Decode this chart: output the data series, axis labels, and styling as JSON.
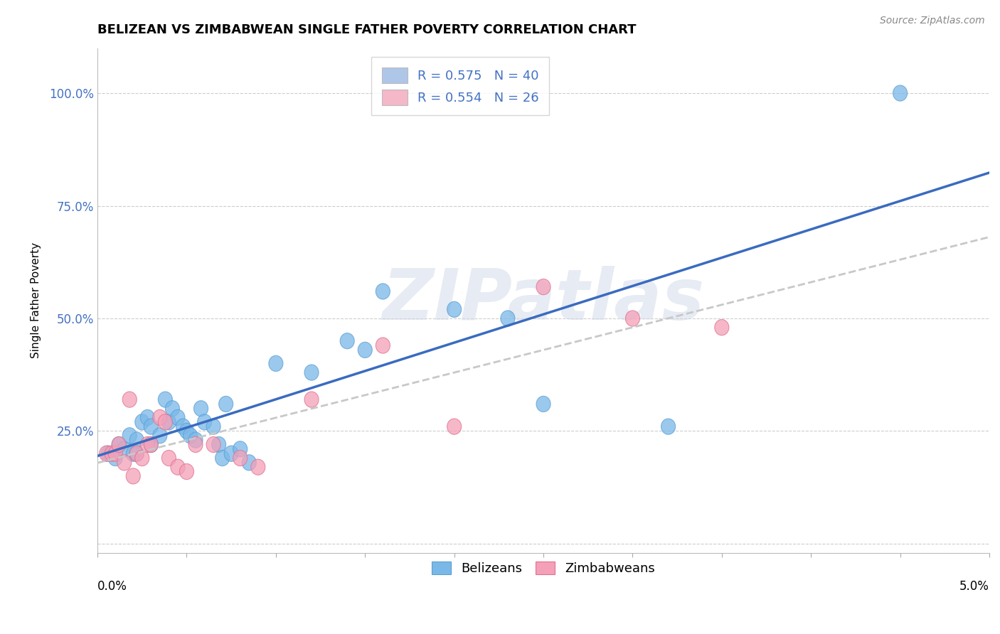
{
  "title": "BELIZEAN VS ZIMBABWEAN SINGLE FATHER POVERTY CORRELATION CHART",
  "source": "Source: ZipAtlas.com",
  "ylabel": "Single Father Poverty",
  "xlim": [
    0.0,
    5.0
  ],
  "ylim": [
    -2.0,
    110.0
  ],
  "yticks": [
    0.0,
    25.0,
    50.0,
    75.0,
    100.0
  ],
  "ytick_labels": [
    "",
    "25.0%",
    "50.0%",
    "75.0%",
    "100.0%"
  ],
  "xtick_positions": [
    0.0,
    0.5,
    1.0,
    1.5,
    2.0,
    2.5,
    3.0,
    3.5,
    4.0,
    4.5,
    5.0
  ],
  "legend_items": [
    {
      "label": "R = 0.575   N = 40",
      "color": "#aec6e8"
    },
    {
      "label": "R = 0.554   N = 26",
      "color": "#f4b8c8"
    }
  ],
  "legend_bottom": [
    "Belizeans",
    "Zimbabweans"
  ],
  "blue_color": "#7ab8e8",
  "blue_edge_color": "#5a9fd4",
  "pink_color": "#f4a0b8",
  "pink_edge_color": "#e07090",
  "blue_line_color": "#3a6bbf",
  "pink_line_color": "#c8c8c8",
  "R_blue": 0.575,
  "N_blue": 40,
  "R_pink": 0.554,
  "N_pink": 26,
  "blue_points": [
    [
      0.06,
      20.0
    ],
    [
      0.1,
      19.0
    ],
    [
      0.12,
      22.0
    ],
    [
      0.15,
      21.0
    ],
    [
      0.18,
      24.0
    ],
    [
      0.2,
      20.0
    ],
    [
      0.22,
      20.0
    ],
    [
      0.22,
      23.0
    ],
    [
      0.25,
      27.0
    ],
    [
      0.28,
      28.0
    ],
    [
      0.3,
      26.0
    ],
    [
      0.3,
      22.0
    ],
    [
      0.35,
      24.0
    ],
    [
      0.38,
      32.0
    ],
    [
      0.4,
      27.0
    ],
    [
      0.42,
      30.0
    ],
    [
      0.45,
      28.0
    ],
    [
      0.48,
      26.0
    ],
    [
      0.5,
      25.0
    ],
    [
      0.52,
      24.0
    ],
    [
      0.55,
      23.0
    ],
    [
      0.58,
      30.0
    ],
    [
      0.6,
      27.0
    ],
    [
      0.65,
      26.0
    ],
    [
      0.68,
      22.0
    ],
    [
      0.7,
      19.0
    ],
    [
      0.72,
      31.0
    ],
    [
      0.75,
      20.0
    ],
    [
      0.8,
      21.0
    ],
    [
      0.85,
      18.0
    ],
    [
      1.0,
      40.0
    ],
    [
      1.2,
      38.0
    ],
    [
      1.4,
      45.0
    ],
    [
      1.5,
      43.0
    ],
    [
      1.6,
      56.0
    ],
    [
      2.0,
      52.0
    ],
    [
      2.3,
      50.0
    ],
    [
      2.5,
      31.0
    ],
    [
      3.2,
      26.0
    ],
    [
      4.5,
      100.0
    ]
  ],
  "pink_points": [
    [
      0.05,
      20.0
    ],
    [
      0.08,
      20.0
    ],
    [
      0.1,
      20.0
    ],
    [
      0.12,
      22.0
    ],
    [
      0.15,
      18.0
    ],
    [
      0.18,
      32.0
    ],
    [
      0.2,
      15.0
    ],
    [
      0.22,
      20.0
    ],
    [
      0.25,
      19.0
    ],
    [
      0.28,
      22.0
    ],
    [
      0.3,
      22.0
    ],
    [
      0.35,
      28.0
    ],
    [
      0.38,
      27.0
    ],
    [
      0.4,
      19.0
    ],
    [
      0.45,
      17.0
    ],
    [
      0.5,
      16.0
    ],
    [
      0.55,
      22.0
    ],
    [
      0.65,
      22.0
    ],
    [
      0.8,
      19.0
    ],
    [
      0.9,
      17.0
    ],
    [
      1.2,
      32.0
    ],
    [
      1.6,
      44.0
    ],
    [
      2.0,
      26.0
    ],
    [
      2.5,
      57.0
    ],
    [
      3.0,
      50.0
    ],
    [
      3.5,
      48.0
    ]
  ],
  "background_color": "#ffffff",
  "grid_color": "#c8c8c8",
  "watermark_text": "ZIPatlas",
  "title_fontsize": 13,
  "axis_label_fontsize": 11,
  "tick_fontsize": 12,
  "legend_fontsize": 13,
  "source_fontsize": 10
}
